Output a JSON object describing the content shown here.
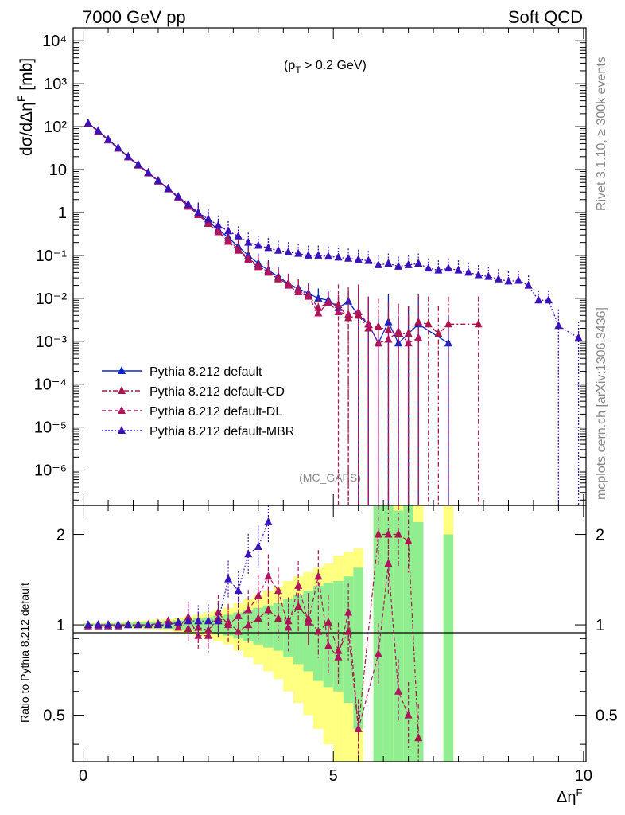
{
  "header": {
    "left_title": "7000 GeV pp",
    "right_title": "Soft QCD",
    "cut_label": "(p",
    "cut_sub": "T",
    "cut_rest": " > 0.2 GeV)",
    "analysis": "(MC_GAPS)"
  },
  "side_labels": {
    "rivet": "Rivet 3.1.10, ≥ 300k events",
    "mcplots": "mcplots.cern.ch [arXiv:1306.3436]"
  },
  "colors": {
    "default": "#0b24cc",
    "cd": "#a8164a",
    "dl": "#b0155f",
    "mbr": "#3a12b8",
    "band_inner": "#90ee90",
    "band_outer": "#ffff80"
  },
  "chart_data": [
    {
      "type": "scatter",
      "panel": "main",
      "ylabel": "dσ/dΔη",
      "ylabel_sup": "F",
      "ylabel_unit": " [mb]",
      "yscale": "log",
      "xlim": [
        -0.2,
        10.05
      ],
      "ylim": [
        1.5e-07,
        20000
      ],
      "y_ticks": [
        "10⁻⁶",
        "10⁻⁵",
        "10⁻⁴",
        "10⁻³",
        "10⁻²",
        "10⁻¹",
        "1",
        "10",
        "10²",
        "10³",
        "10⁴"
      ],
      "legend_position": "lower-left",
      "series": [
        {
          "name": "Pythia 8.212 default",
          "style": "solid",
          "color": "#0b24cc",
          "x": [
            0.1,
            0.3,
            0.5,
            0.7,
            0.9,
            1.1,
            1.3,
            1.5,
            1.7,
            1.9,
            2.1,
            2.3,
            2.5,
            2.7,
            2.9,
            3.1,
            3.3,
            3.5,
            3.7,
            3.9,
            4.1,
            4.3,
            4.5,
            4.7,
            4.9,
            5.1,
            5.3,
            5.5,
            5.7,
            5.9,
            6.1,
            6.3,
            6.5,
            6.7,
            7.3
          ],
          "y": [
            120,
            80,
            50,
            32,
            20,
            13,
            8.5,
            5.5,
            3.6,
            2.3,
            1.5,
            0.95,
            0.62,
            0.4,
            0.26,
            0.16,
            0.1,
            0.065,
            0.045,
            0.032,
            0.022,
            0.017,
            0.013,
            0.01,
            0.009,
            0.006,
            0.0085,
            0.004,
            0.0025,
            0.0009,
            0.0028,
            0.0009,
            0.0015,
            0.0025,
            0.0009
          ]
        },
        {
          "name": "Pythia 8.212 default-CD",
          "style": "dashdot",
          "color": "#a8164a",
          "x": [
            0.1,
            0.3,
            0.5,
            0.7,
            0.9,
            1.1,
            1.3,
            1.5,
            1.7,
            1.9,
            2.1,
            2.3,
            2.5,
            2.7,
            2.9,
            3.1,
            3.3,
            3.5,
            3.7,
            3.9,
            4.1,
            4.3,
            4.5,
            4.7,
            4.9,
            5.1,
            5.3,
            5.5,
            5.7,
            5.9,
            6.1,
            6.3,
            6.5,
            6.7,
            6.9,
            7.1,
            7.3,
            7.9
          ],
          "y": [
            118,
            78,
            49,
            31,
            19.5,
            12.5,
            8.3,
            5.4,
            3.5,
            2.2,
            1.4,
            0.9,
            0.58,
            0.37,
            0.23,
            0.14,
            0.085,
            0.058,
            0.04,
            0.028,
            0.022,
            0.016,
            0.012,
            0.006,
            0.008,
            0.007,
            0.0035,
            0.004,
            0.002,
            0.0022,
            0.0018,
            0.0015,
            0.0015,
            0.0028,
            0.0025,
            0.0015,
            0.0025,
            0.0025
          ]
        },
        {
          "name": "Pythia 8.212 default-DL",
          "style": "dashed",
          "color": "#b0155f",
          "x": [
            0.1,
            0.3,
            0.5,
            0.7,
            0.9,
            1.1,
            1.3,
            1.5,
            1.7,
            1.9,
            2.1,
            2.3,
            2.5,
            2.7,
            2.9,
            3.1,
            3.3,
            3.5,
            3.7,
            3.9,
            4.1,
            4.3,
            4.5,
            4.7,
            4.9,
            5.1,
            5.3,
            5.5,
            5.7,
            5.9,
            6.1,
            6.3,
            6.5,
            6.7
          ],
          "y": [
            117,
            77,
            48,
            31,
            19.5,
            12.7,
            8.2,
            5.3,
            3.5,
            2.2,
            1.38,
            0.88,
            0.55,
            0.35,
            0.21,
            0.13,
            0.08,
            0.054,
            0.042,
            0.03,
            0.02,
            0.014,
            0.011,
            0.0045,
            0.008,
            0.0048,
            0.0042,
            0.0048,
            0.0025,
            0.0009,
            0.0011,
            0.0017,
            0.0009,
            0.0012
          ]
        },
        {
          "name": "Pythia 8.212 default-MBR",
          "style": "dotted",
          "color": "#3a12b8",
          "x": [
            0.1,
            0.3,
            0.5,
            0.7,
            0.9,
            1.1,
            1.3,
            1.5,
            1.7,
            1.9,
            2.1,
            2.3,
            2.5,
            2.7,
            2.9,
            3.1,
            3.3,
            3.5,
            3.7,
            3.9,
            4.1,
            4.3,
            4.5,
            4.7,
            4.9,
            5.1,
            5.3,
            5.5,
            5.7,
            5.9,
            6.1,
            6.3,
            6.5,
            6.7,
            6.9,
            7.1,
            7.3,
            7.5,
            7.7,
            7.9,
            8.1,
            8.3,
            8.5,
            8.7,
            8.9,
            9.1,
            9.3,
            9.5,
            9.9
          ],
          "y": [
            120,
            80,
            50,
            32,
            20,
            13,
            8.5,
            5.5,
            3.6,
            2.35,
            1.55,
            1.0,
            0.7,
            0.5,
            0.37,
            0.28,
            0.2,
            0.17,
            0.15,
            0.13,
            0.12,
            0.11,
            0.1,
            0.1,
            0.095,
            0.09,
            0.085,
            0.08,
            0.075,
            0.06,
            0.065,
            0.055,
            0.06,
            0.065,
            0.05,
            0.045,
            0.05,
            0.045,
            0.04,
            0.035,
            0.032,
            0.028,
            0.025,
            0.026,
            0.02,
            0.009,
            0.009,
            0.0023,
            0.0012
          ]
        }
      ]
    },
    {
      "type": "scatter",
      "panel": "ratio",
      "ylabel": "Ratio to Pythia 8.212 default",
      "xlabel": "Δη",
      "xlabel_sup": "F",
      "yscale": "log",
      "xlim": [
        -0.2,
        10.05
      ],
      "ylim": [
        0.35,
        2.5
      ],
      "x_ticks": [
        "0",
        "5",
        "10"
      ],
      "y_ticks": [
        "0.5",
        "1",
        "2"
      ],
      "band": {
        "x": [
          0.1,
          0.3,
          0.5,
          0.7,
          0.9,
          1.1,
          1.3,
          1.5,
          1.7,
          1.9,
          2.1,
          2.3,
          2.5,
          2.7,
          2.9,
          3.1,
          3.3,
          3.5,
          3.7,
          3.9,
          4.1,
          4.3,
          4.5,
          4.7,
          4.9,
          5.1,
          5.3,
          5.5,
          5.9,
          6.1,
          6.3,
          6.5,
          6.7,
          7.3
        ],
        "inner": [
          0.01,
          0.01,
          0.012,
          0.014,
          0.016,
          0.02,
          0.022,
          0.026,
          0.03,
          0.035,
          0.04,
          0.05,
          0.06,
          0.07,
          0.08,
          0.1,
          0.12,
          0.14,
          0.16,
          0.18,
          0.22,
          0.26,
          0.3,
          0.35,
          0.38,
          0.4,
          0.45,
          0.55,
          1.5,
          1.6,
          1.4,
          1.5,
          1.2,
          1.0
        ],
        "outer": [
          0.015,
          0.015,
          0.018,
          0.02,
          0.024,
          0.03,
          0.035,
          0.04,
          0.045,
          0.055,
          0.065,
          0.08,
          0.1,
          0.12,
          0.14,
          0.18,
          0.22,
          0.26,
          0.3,
          0.34,
          0.4,
          0.45,
          0.5,
          0.55,
          0.6,
          0.7,
          0.75,
          0.8,
          2.5,
          2.6,
          2.4,
          2.5,
          2.2,
          2.4
        ]
      },
      "series": [
        {
          "name": "Pythia 8.212 default-CD",
          "x": [
            0.1,
            0.3,
            0.5,
            0.7,
            0.9,
            1.1,
            1.3,
            1.5,
            1.7,
            1.9,
            2.1,
            2.3,
            2.5,
            2.7,
            2.9,
            3.1,
            3.3,
            3.5,
            3.7,
            3.9,
            4.1,
            4.3,
            4.5,
            4.7,
            4.9,
            5.1,
            5.3,
            5.5,
            5.9,
            6.1,
            6.3,
            6.5,
            6.7
          ],
          "y": [
            1.0,
            1.0,
            1.0,
            1.0,
            1.0,
            1.0,
            1.0,
            1.0,
            1.0,
            1.02,
            0.97,
            0.98,
            0.96,
            1.05,
            1.02,
            0.95,
            1.0,
            1.05,
            1.12,
            1.05,
            1.03,
            1.15,
            1.05,
            0.95,
            1.02,
            0.82,
            0.95,
            0.45,
            2.0,
            2.0,
            2.0,
            1.9,
            0.42
          ]
        },
        {
          "name": "Pythia 8.212 default-DL",
          "x": [
            0.1,
            0.3,
            0.5,
            0.7,
            0.9,
            1.1,
            1.3,
            1.5,
            1.7,
            1.9,
            2.1,
            2.3,
            2.5,
            2.7,
            2.9,
            3.1,
            3.3,
            3.5,
            3.7,
            3.9,
            4.1,
            4.3,
            4.5,
            4.7,
            4.9,
            5.1,
            5.3,
            5.5,
            5.9,
            6.1,
            6.3,
            6.5
          ],
          "y": [
            0.99,
            0.99,
            0.99,
            0.99,
            1.0,
            1.0,
            1.0,
            1.01,
            1.03,
            0.98,
            1.06,
            0.92,
            0.92,
            1.1,
            1.0,
            1.07,
            1.12,
            1.25,
            1.45,
            1.3,
            0.98,
            1.35,
            1.02,
            1.45,
            0.85,
            0.78,
            1.1,
            0.45,
            0.8,
            1.6,
            0.6,
            0.5
          ]
        },
        {
          "name": "Pythia 8.212 default-MBR",
          "x": [
            0.1,
            0.3,
            0.5,
            0.7,
            0.9,
            1.1,
            1.3,
            1.5,
            1.7,
            1.9,
            2.1,
            2.3,
            2.5,
            2.7,
            2.9,
            3.1,
            3.3,
            3.5,
            3.7
          ],
          "y": [
            1.0,
            1.0,
            1.0,
            1.0,
            1.0,
            1.0,
            1.0,
            1.0,
            1.0,
            1.02,
            1.03,
            1.03,
            1.03,
            1.03,
            1.42,
            1.3,
            1.72,
            1.82,
            2.2
          ]
        }
      ]
    }
  ]
}
